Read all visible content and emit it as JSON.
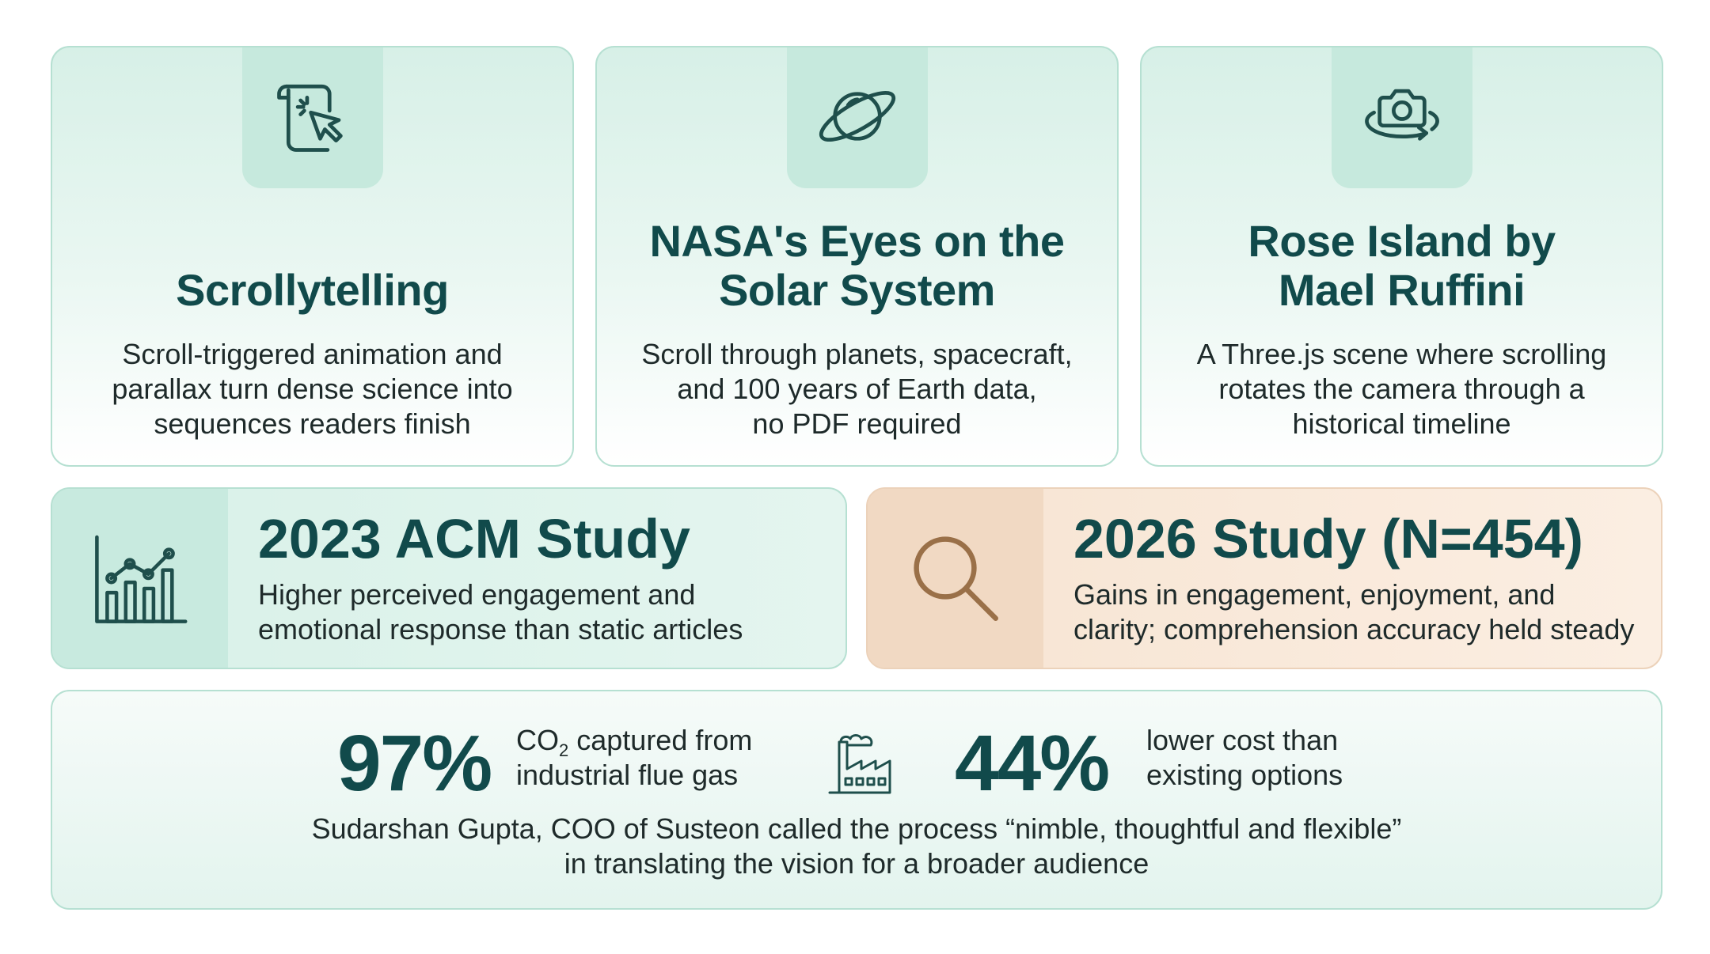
{
  "cards": [
    {
      "title_lines": [
        "",
        "Scrollytelling"
      ],
      "desc_lines": [
        "Scroll-triggered animation and",
        "parallax turn dense science into",
        "sequences readers finish"
      ],
      "icon": "scroll-cursor-icon"
    },
    {
      "title_lines": [
        "NASA's Eyes on the",
        "Solar System"
      ],
      "desc_lines": [
        "Scroll through planets, spacecraft,",
        "and 100 years of Earth data,",
        "no PDF required"
      ],
      "icon": "planet-icon"
    },
    {
      "title_lines": [
        "Rose Island by",
        "Mael Ruffini"
      ],
      "desc_lines": [
        "A Three.js scene where scrolling",
        "rotates the camera through a",
        "historical timeline"
      ],
      "icon": "rotate-camera-icon"
    }
  ],
  "studies": [
    {
      "title": "2023 ACM Study",
      "desc_lines": [
        "Higher perceived engagement and",
        "emotional response than static articles"
      ],
      "icon": "bar-line-chart-icon",
      "accent": "#c8eadf"
    },
    {
      "title": "2026 Study (N=454)",
      "desc_lines": [
        "Gains in engagement, enjoyment, and",
        "clarity; comprehension accuracy held steady"
      ],
      "icon": "magnifier-icon",
      "accent": "#f1d9c3"
    }
  ],
  "stats": {
    "stat1_value": "97%",
    "stat1_line1_prefix": "CO",
    "stat1_line1_sub": "2",
    "stat1_line1_suffix": " captured from",
    "stat1_line2": "industrial flue gas",
    "stat2_value": "44%",
    "stat2_line1": "lower cost than",
    "stat2_line2": "existing options",
    "quote_lines": [
      "Sudarshan Gupta, COO of Susteon called the process “nimble, thoughtful and flexible”",
      "in translating the vision for a broader audience"
    ],
    "icon": "factory-icon"
  },
  "colors": {
    "teal_dark": "#114a4b",
    "mint": "#d7f0e7",
    "peach": "#f7e4d2",
    "icon_stroke": "#1f4f4c",
    "search_stroke": "#9a7048"
  }
}
